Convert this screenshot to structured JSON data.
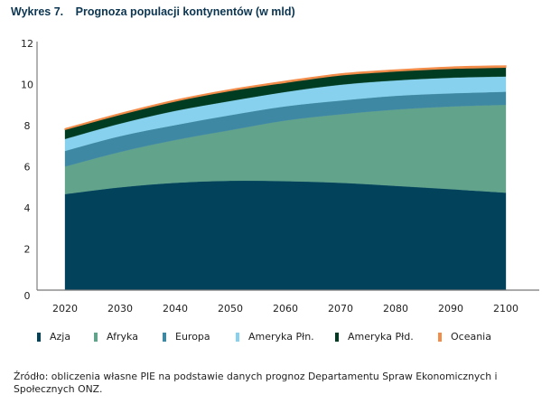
{
  "title": {
    "number": "Wykres 7.",
    "text": "Prognoza populacji kontynentów (w mld)"
  },
  "source": "Źródło: obliczenia własne PIE na podstawie danych prognoz Departamentu Spraw Ekonomicznych i Społecznych ONZ.",
  "chart_data": {
    "type": "area",
    "stacked": true,
    "title": "Prognoza populacji kontynentów (w mld)",
    "xlabel": "",
    "ylabel": "",
    "x": [
      "2020",
      "2030",
      "2040",
      "2050",
      "2060",
      "2070",
      "2080",
      "2090",
      "2100"
    ],
    "yticks": [
      "0",
      "2",
      "4",
      "6",
      "8",
      "10",
      "12"
    ],
    "ylim": [
      0,
      12
    ],
    "grid": false,
    "legend_position": "bottom",
    "series": [
      {
        "name": "Azja",
        "color": "#02425b",
        "values": [
          4.67,
          5.0,
          5.22,
          5.32,
          5.3,
          5.22,
          5.07,
          4.91,
          4.74
        ]
      },
      {
        "name": "Afryka",
        "color": "#62a38b",
        "values": [
          1.34,
          1.72,
          2.08,
          2.46,
          2.95,
          3.33,
          3.71,
          4.02,
          4.27
        ]
      },
      {
        "name": "Europa",
        "color": "#3f88a3",
        "values": [
          0.76,
          0.77,
          0.73,
          0.73,
          0.69,
          0.67,
          0.67,
          0.64,
          0.64
        ]
      },
      {
        "name": "Ameryka Płn.",
        "color": "#87d1ee",
        "values": [
          0.58,
          0.61,
          0.69,
          0.69,
          0.7,
          0.77,
          0.75,
          0.76,
          0.74
        ]
      },
      {
        "name": "Ameryka Płd.",
        "color": "#003c22",
        "values": [
          0.46,
          0.44,
          0.47,
          0.5,
          0.46,
          0.47,
          0.45,
          0.45,
          0.45
        ]
      },
      {
        "name": "Oceania",
        "color": "#f28c4a",
        "values": [
          0.04,
          0.05,
          0.05,
          0.05,
          0.06,
          0.06,
          0.06,
          0.07,
          0.07
        ]
      }
    ]
  }
}
